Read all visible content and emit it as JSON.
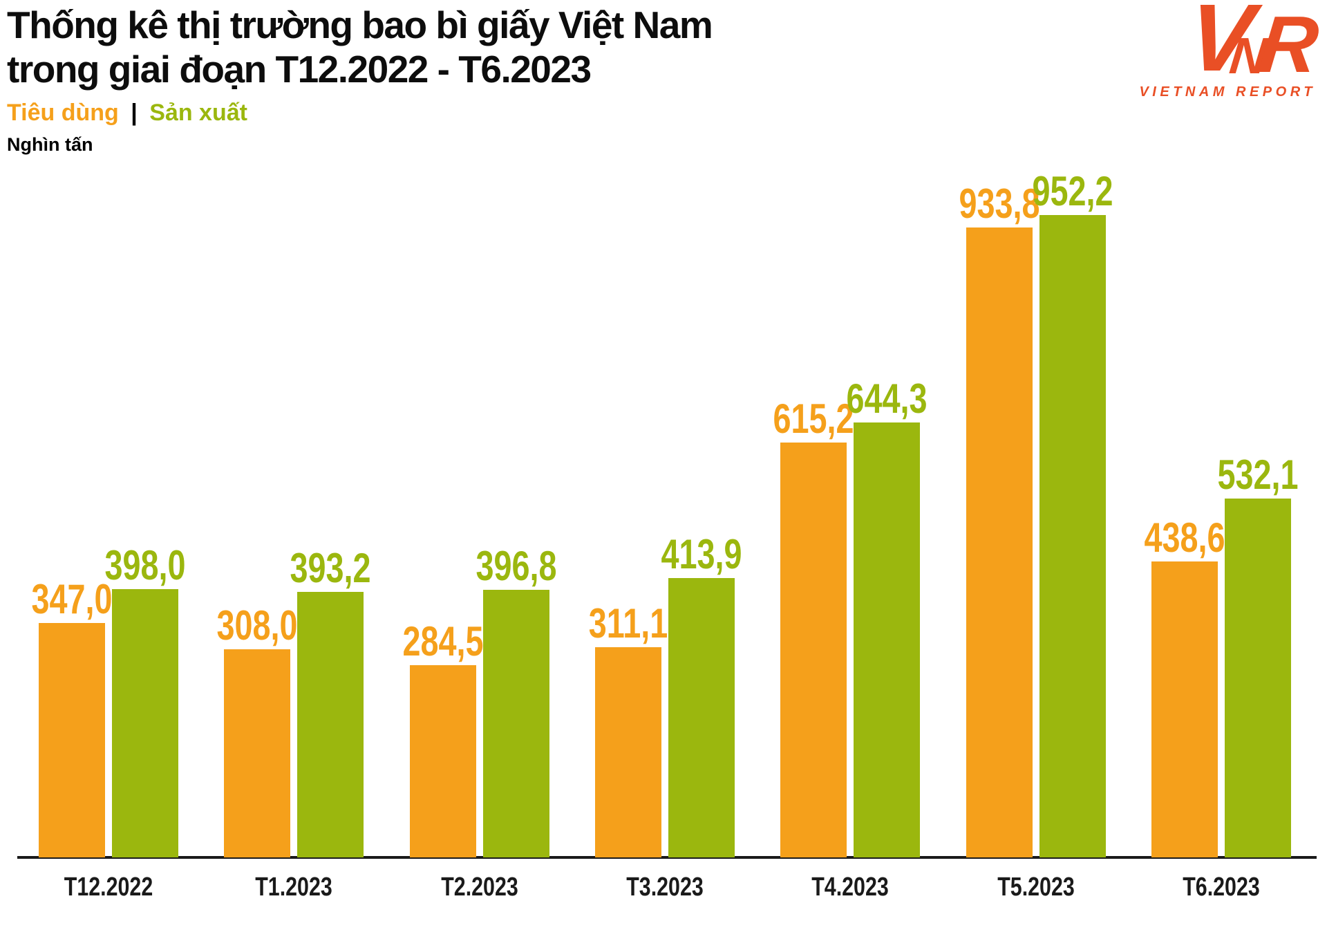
{
  "header": {
    "title_line1": "Thống kê thị trường bao bì giấy Việt Nam",
    "title_line2": "trong giai đoạn T12.2022 - T6.2023"
  },
  "legend": {
    "separator": "|"
  },
  "logo": {
    "letters": [
      "V",
      "N",
      "R"
    ],
    "subtitle": "VIETNAM REPORT",
    "color": "#E94F25"
  },
  "colors": {
    "orange": "#F5A01B",
    "green": "#9BB70E",
    "axis": "#1A1A1A",
    "title_text": "#0D0D0D"
  },
  "chart_data": {
    "type": "bar",
    "title": "Thống kê thị trường bao bì giấy Việt Nam trong giai đoạn T12.2022 - T6.2023",
    "xlabel": "",
    "ylabel": "Nghìn tấn",
    "categories": [
      "T12.2022",
      "T1.2023",
      "T2.2023",
      "T3.2023",
      "T4.2023",
      "T5.2023",
      "T6.2023"
    ],
    "series": [
      {
        "name": "Tiêu dùng",
        "color": "#F5A01B",
        "values": [
          347.0,
          308.0,
          284.5,
          311.1,
          615.2,
          933.8,
          438.6
        ],
        "labels": [
          "347,0",
          "308,0",
          "284,5",
          "311,1",
          "615,2",
          "933,8",
          "438,6"
        ]
      },
      {
        "name": "Sản xuất",
        "color": "#9BB70E",
        "values": [
          398.0,
          393.2,
          396.8,
          413.9,
          644.3,
          952.2,
          532.1
        ],
        "labels": [
          "398,0",
          "393,2",
          "396,8",
          "413,9",
          "644,3",
          "952,2",
          "532,1"
        ]
      }
    ],
    "ylim": [
      0,
      1000
    ],
    "grid": false,
    "value_format": "comma-decimal",
    "legend_position": "top-left",
    "data_labels": "above-bars"
  }
}
